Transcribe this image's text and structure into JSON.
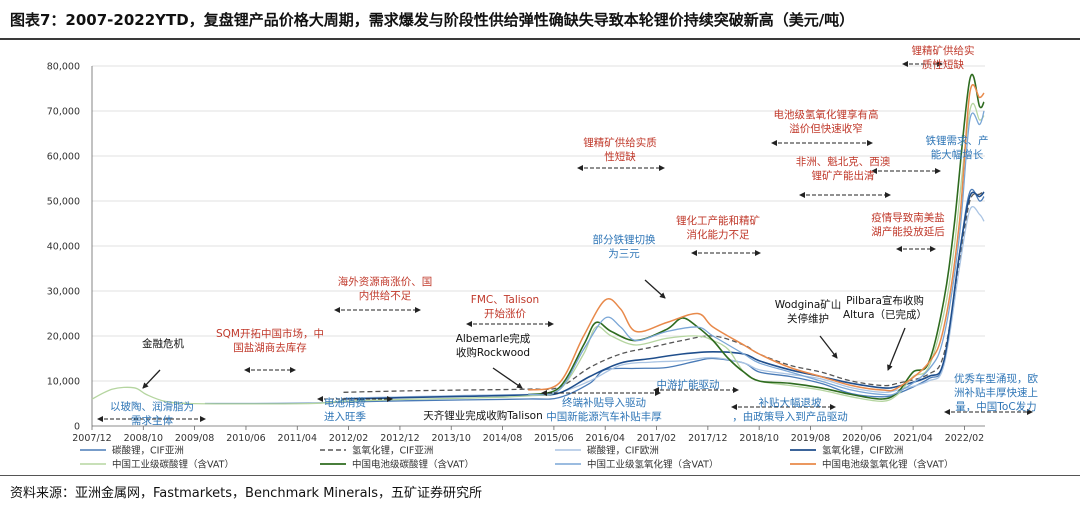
{
  "title": "图表7：2007-2022YTD，复盘锂产品价格大周期，需求爆发与阶段性供给弹性确缺失导致本轮锂价持续突破新高（美元/吨）",
  "source": "资料来源：亚洲金属网，Fastmarkets，Benchmark Minerals，五矿证券研究所",
  "colors": {
    "red": "#c0392b",
    "blue": "#2e75b6",
    "black": "#111111"
  },
  "chart_data": {
    "type": "line",
    "ylim": [
      0,
      80000
    ],
    "y_ticks": [
      "0",
      "10,000",
      "20,000",
      "30,000",
      "40,000",
      "50,000",
      "60,000",
      "70,000",
      "80,000"
    ],
    "x_range": [
      2007.917,
      2022.417
    ],
    "x_ticks": [
      {
        "label": "2007/12",
        "t": 2007.917
      },
      {
        "label": "2008/10",
        "t": 2008.75
      },
      {
        "label": "2009/08",
        "t": 2009.583
      },
      {
        "label": "2010/06",
        "t": 2010.417
      },
      {
        "label": "2011/04",
        "t": 2011.25
      },
      {
        "label": "2012/02",
        "t": 2012.083
      },
      {
        "label": "2012/12",
        "t": 2012.917
      },
      {
        "label": "2013/10",
        "t": 2013.75
      },
      {
        "label": "2014/08",
        "t": 2014.583
      },
      {
        "label": "2015/06",
        "t": 2015.417
      },
      {
        "label": "2016/04",
        "t": 2016.25
      },
      {
        "label": "2017/02",
        "t": 2017.083
      },
      {
        "label": "2017/12",
        "t": 2017.917
      },
      {
        "label": "2018/10",
        "t": 2018.75
      },
      {
        "label": "2019/08",
        "t": 2019.583
      },
      {
        "label": "2020/06",
        "t": 2020.417
      },
      {
        "label": "2021/04",
        "t": 2021.25
      },
      {
        "label": "2022/02",
        "t": 2022.083
      }
    ],
    "series": [
      {
        "name": "碳酸锂，CIF亚洲",
        "color": "#4a7bb7",
        "width": 1.3,
        "dash": "",
        "points": [
          [
            2009.75,
            5000
          ],
          [
            2010.5,
            5000
          ],
          [
            2011.5,
            5100
          ],
          [
            2012.0,
            5300
          ],
          [
            2013.0,
            5600
          ],
          [
            2014.0,
            5800
          ],
          [
            2015.0,
            6000
          ],
          [
            2015.5,
            6300
          ],
          [
            2016.0,
            9500
          ],
          [
            2016.25,
            12500
          ],
          [
            2016.75,
            12800
          ],
          [
            2017.25,
            13000
          ],
          [
            2017.75,
            14500
          ],
          [
            2018.0,
            15000
          ],
          [
            2018.5,
            14000
          ],
          [
            2018.75,
            12000
          ],
          [
            2019.25,
            11000
          ],
          [
            2019.75,
            9500
          ],
          [
            2020.25,
            7200
          ],
          [
            2020.75,
            6500
          ],
          [
            2021.0,
            7200
          ],
          [
            2021.5,
            10500
          ],
          [
            2021.75,
            14000
          ],
          [
            2022.0,
            38000
          ],
          [
            2022.17,
            52000
          ],
          [
            2022.33,
            50000
          ],
          [
            2022.4,
            51000
          ]
        ]
      },
      {
        "name": "氢氧化锂，CIF亚洲",
        "color": "#555555",
        "width": 1.3,
        "dash": "5,3",
        "points": [
          [
            2012.0,
            7500
          ],
          [
            2013.0,
            7800
          ],
          [
            2014.0,
            8000
          ],
          [
            2015.0,
            8200
          ],
          [
            2015.5,
            8600
          ],
          [
            2016.0,
            13000
          ],
          [
            2016.5,
            16000
          ],
          [
            2017.0,
            17500
          ],
          [
            2017.5,
            19000
          ],
          [
            2018.0,
            20000
          ],
          [
            2018.5,
            18000
          ],
          [
            2018.75,
            16000
          ],
          [
            2019.25,
            13500
          ],
          [
            2019.75,
            12000
          ],
          [
            2020.25,
            10000
          ],
          [
            2020.75,
            9000
          ],
          [
            2021.0,
            9500
          ],
          [
            2021.5,
            11500
          ],
          [
            2021.75,
            16000
          ],
          [
            2022.0,
            36000
          ],
          [
            2022.17,
            50000
          ],
          [
            2022.33,
            51500
          ],
          [
            2022.4,
            52000
          ]
        ]
      },
      {
        "name": "碳酸锂，CIF欧洲",
        "color": "#aac4e3",
        "width": 1.3,
        "dash": "",
        "points": [
          [
            2012.0,
            6200
          ],
          [
            2013.0,
            6500
          ],
          [
            2014.0,
            6800
          ],
          [
            2015.0,
            7000
          ],
          [
            2015.5,
            7400
          ],
          [
            2016.0,
            10000
          ],
          [
            2016.5,
            13500
          ],
          [
            2017.0,
            14200
          ],
          [
            2017.5,
            14500
          ],
          [
            2018.0,
            15200
          ],
          [
            2018.5,
            14000
          ],
          [
            2018.75,
            12500
          ],
          [
            2019.25,
            11500
          ],
          [
            2019.75,
            10500
          ],
          [
            2020.25,
            8500
          ],
          [
            2020.75,
            7500
          ],
          [
            2021.0,
            8000
          ],
          [
            2021.5,
            10000
          ],
          [
            2021.75,
            13500
          ],
          [
            2022.0,
            35000
          ],
          [
            2022.17,
            48000
          ],
          [
            2022.33,
            47000
          ],
          [
            2022.4,
            45500
          ]
        ]
      },
      {
        "name": "氢氧化锂，CIF欧洲",
        "color": "#1f4e8c",
        "width": 1.6,
        "dash": "",
        "points": [
          [
            2012.0,
            6000
          ],
          [
            2013.0,
            6300
          ],
          [
            2014.0,
            6600
          ],
          [
            2015.0,
            6900
          ],
          [
            2015.5,
            7300
          ],
          [
            2016.0,
            11000
          ],
          [
            2016.5,
            14000
          ],
          [
            2017.0,
            15000
          ],
          [
            2017.5,
            16000
          ],
          [
            2018.0,
            16500
          ],
          [
            2018.5,
            16000
          ],
          [
            2018.75,
            14500
          ],
          [
            2019.25,
            12500
          ],
          [
            2019.75,
            11000
          ],
          [
            2020.25,
            9500
          ],
          [
            2020.75,
            8500
          ],
          [
            2021.0,
            8800
          ],
          [
            2021.5,
            11000
          ],
          [
            2021.75,
            14500
          ],
          [
            2022.0,
            38000
          ],
          [
            2022.17,
            51000
          ],
          [
            2022.33,
            51000
          ],
          [
            2022.4,
            52000
          ]
        ]
      },
      {
        "name": "中国工业级碳酸锂（含VAT）",
        "color": "#b5d5a0",
        "width": 1.3,
        "dash": "",
        "points": [
          [
            2007.917,
            6000
          ],
          [
            2008.25,
            8200
          ],
          [
            2008.6,
            8500
          ],
          [
            2008.8,
            7000
          ],
          [
            2009.1,
            5500
          ],
          [
            2009.5,
            5000
          ],
          [
            2010.5,
            4900
          ],
          [
            2011.5,
            5000
          ],
          [
            2012.0,
            5500
          ],
          [
            2013.0,
            5900
          ],
          [
            2014.0,
            6200
          ],
          [
            2015.0,
            6700
          ],
          [
            2015.5,
            8000
          ],
          [
            2015.9,
            16000
          ],
          [
            2016.1,
            22000
          ],
          [
            2016.35,
            20000
          ],
          [
            2016.75,
            18000
          ],
          [
            2017.25,
            19500
          ],
          [
            2017.75,
            20000
          ],
          [
            2018.0,
            19000
          ],
          [
            2018.25,
            17000
          ],
          [
            2018.5,
            12000
          ],
          [
            2018.75,
            10000
          ],
          [
            2019.25,
            9000
          ],
          [
            2019.75,
            8000
          ],
          [
            2020.25,
            6500
          ],
          [
            2020.75,
            5500
          ],
          [
            2021.0,
            7000
          ],
          [
            2021.25,
            11000
          ],
          [
            2021.5,
            13000
          ],
          [
            2021.75,
            25000
          ],
          [
            2021.92,
            40000
          ],
          [
            2022.17,
            70000
          ],
          [
            2022.33,
            68000
          ],
          [
            2022.4,
            69000
          ]
        ]
      },
      {
        "name": "中国电池级碳酸锂（含VAT）",
        "color": "#2e6b1f",
        "width": 1.6,
        "dash": "",
        "points": [
          [
            2015.0,
            7000
          ],
          [
            2015.5,
            8500
          ],
          [
            2015.9,
            18000
          ],
          [
            2016.1,
            23000
          ],
          [
            2016.35,
            21000
          ],
          [
            2016.75,
            19000
          ],
          [
            2017.25,
            21500
          ],
          [
            2017.5,
            24000
          ],
          [
            2017.75,
            22000
          ],
          [
            2018.0,
            19000
          ],
          [
            2018.25,
            15000
          ],
          [
            2018.5,
            12000
          ],
          [
            2018.75,
            10000
          ],
          [
            2019.25,
            9500
          ],
          [
            2019.75,
            8500
          ],
          [
            2020.25,
            7000
          ],
          [
            2020.75,
            6000
          ],
          [
            2021.0,
            7500
          ],
          [
            2021.25,
            12000
          ],
          [
            2021.5,
            14000
          ],
          [
            2021.75,
            28000
          ],
          [
            2021.92,
            45000
          ],
          [
            2022.17,
            77000
          ],
          [
            2022.33,
            71000
          ],
          [
            2022.4,
            72000
          ]
        ]
      },
      {
        "name": "中国工业级氢氧化锂（含VAT）",
        "color": "#7aa6d6",
        "width": 1.3,
        "dash": "",
        "points": [
          [
            2015.0,
            7000
          ],
          [
            2015.5,
            8000
          ],
          [
            2015.9,
            17000
          ],
          [
            2016.25,
            24000
          ],
          [
            2016.5,
            22000
          ],
          [
            2016.75,
            19000
          ],
          [
            2017.25,
            21000
          ],
          [
            2017.75,
            22000
          ],
          [
            2018.0,
            20000
          ],
          [
            2018.5,
            16000
          ],
          [
            2018.75,
            14000
          ],
          [
            2019.25,
            12000
          ],
          [
            2019.75,
            10000
          ],
          [
            2020.25,
            8000
          ],
          [
            2020.75,
            7000
          ],
          [
            2021.0,
            7500
          ],
          [
            2021.5,
            12500
          ],
          [
            2021.75,
            20000
          ],
          [
            2022.0,
            42000
          ],
          [
            2022.17,
            68000
          ],
          [
            2022.33,
            67000
          ],
          [
            2022.4,
            70000
          ]
        ]
      },
      {
        "name": "中国电池级氢氧化锂（含VAT）",
        "color": "#e8894a",
        "width": 1.5,
        "dash": "",
        "points": [
          [
            2015.0,
            8000
          ],
          [
            2015.5,
            9500
          ],
          [
            2015.9,
            20000
          ],
          [
            2016.25,
            28000
          ],
          [
            2016.5,
            26000
          ],
          [
            2016.75,
            21000
          ],
          [
            2017.25,
            23000
          ],
          [
            2017.75,
            25000
          ],
          [
            2018.0,
            22000
          ],
          [
            2018.5,
            18000
          ],
          [
            2018.75,
            16000
          ],
          [
            2019.25,
            13000
          ],
          [
            2019.75,
            11000
          ],
          [
            2020.25,
            9000
          ],
          [
            2020.75,
            8000
          ],
          [
            2021.0,
            8500
          ],
          [
            2021.5,
            14000
          ],
          [
            2021.75,
            22000
          ],
          [
            2022.0,
            45000
          ],
          [
            2022.17,
            74000
          ],
          [
            2022.33,
            73000
          ],
          [
            2022.4,
            74000
          ]
        ]
      }
    ],
    "legend_position": "bottom",
    "annotations": [
      {
        "id": "financial-crisis",
        "lines": [
          "金融危机"
        ],
        "color": "black"
      },
      {
        "id": "glass-ceramics",
        "lines": [
          "以玻陶、润滑脂为",
          "需求主体"
        ],
        "color": "blue"
      },
      {
        "id": "sqm-china",
        "lines": [
          "SQM开拓中国市场，中",
          "国盐湖商去库存"
        ],
        "color": "red"
      },
      {
        "id": "battery-peak",
        "lines": [
          "电池消费",
          "进入旺季"
        ],
        "color": "blue"
      },
      {
        "id": "overseas-price",
        "lines": [
          "海外资源商涨价、国",
          "内供给不足"
        ],
        "color": "red"
      },
      {
        "id": "tianqi-talison",
        "lines": [
          "天齐锂业完成收购Talison"
        ],
        "color": "black"
      },
      {
        "id": "albemarle",
        "lines": [
          "Albemarle完成",
          "收购Rockwood"
        ],
        "color": "black"
      },
      {
        "id": "fmc-talison",
        "lines": [
          "FMC、Talison",
          "开始涨价"
        ],
        "color": "red"
      },
      {
        "id": "ternary-switch",
        "lines": [
          "部分铁锂切换",
          "为三元"
        ],
        "color": "blue"
      },
      {
        "id": "spodumene-shortage",
        "lines": [
          "锂精矿供给实质",
          "性短缺"
        ],
        "color": "red"
      },
      {
        "id": "conversion-capacity",
        "lines": [
          "锂化工产能和精矿",
          "消化能力不足"
        ],
        "color": "red"
      },
      {
        "id": "midstream-expansion",
        "lines": [
          "中游扩能驱动"
        ],
        "color": "blue"
      },
      {
        "id": "terminal-subsidy",
        "lines": [
          "终端补贴导入驱动",
          "中国新能源汽车补贴丰厚"
        ],
        "color": "blue"
      },
      {
        "id": "subsidy-cut",
        "lines": [
          "补贴大幅退坡",
          "，由政策导入到产品驱动"
        ],
        "color": "blue"
      },
      {
        "id": "wodgina",
        "lines": [
          "Wodgina矿山",
          "关停维护"
        ],
        "color": "black"
      },
      {
        "id": "pilbara",
        "lines": [
          "Pilbara宣布收购",
          "Altura（已完成）"
        ],
        "color": "black"
      },
      {
        "id": "hydroxide-premium",
        "lines": [
          "电池级氢氧化锂享有高",
          "溢价但快速收窄"
        ],
        "color": "red"
      },
      {
        "id": "africa-supply",
        "lines": [
          "非洲、魁北克、西澳",
          "锂矿产能出清"
        ],
        "color": "red"
      },
      {
        "id": "lfp-ternary-demand",
        "lines": [
          "铁锂需求、产",
          "能大幅增长"
        ],
        "color": "blue"
      },
      {
        "id": "pandemic-delay",
        "lines": [
          "疫情导致南美盐",
          "湖产能投放延后"
        ],
        "color": "red"
      },
      {
        "id": "spodumene-shortage-2",
        "lines": [
          "锂精矿供给实",
          "质性短缺"
        ],
        "color": "red"
      },
      {
        "id": "quality-models",
        "lines": [
          "优秀车型涌现，欧",
          "洲补贴丰厚快速上",
          "量，中国ToC发力"
        ],
        "color": "blue"
      }
    ]
  }
}
